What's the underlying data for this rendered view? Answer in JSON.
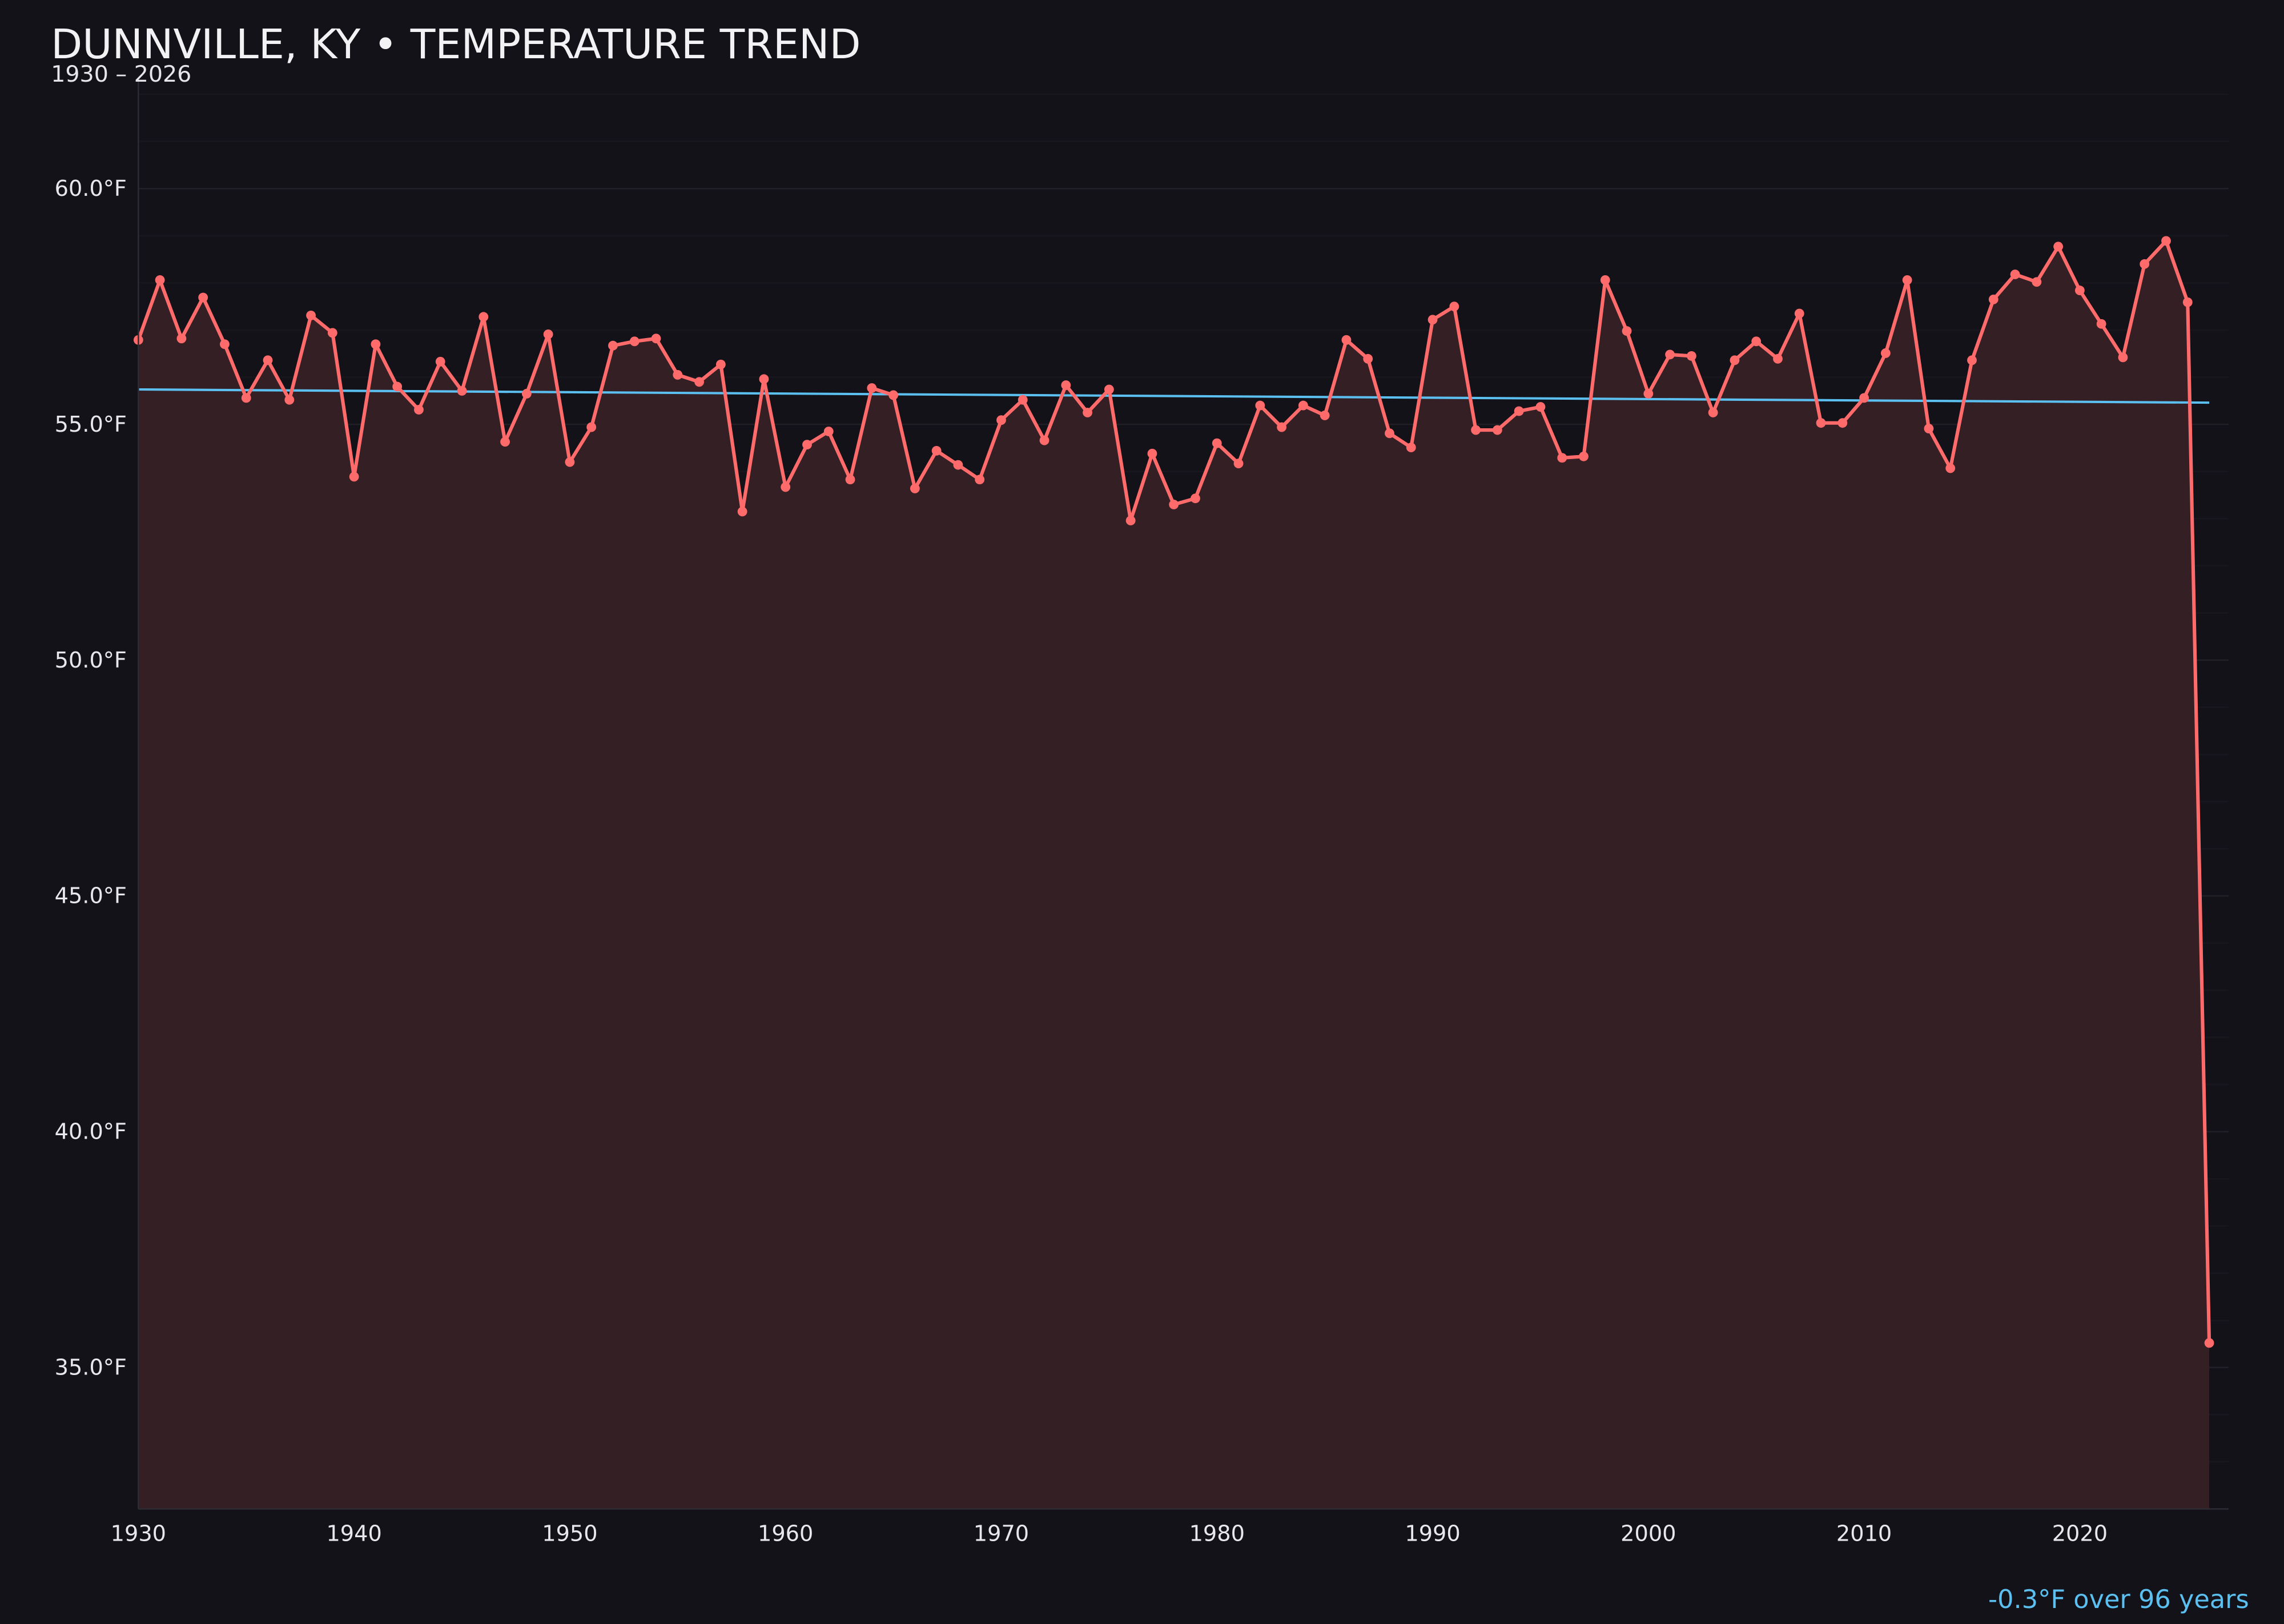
{
  "colors": {
    "background": "#131219",
    "series": "#ff6b6b",
    "fill": "#341f25",
    "trend": "#5bc0f0",
    "grid": "#1f1e25"
  },
  "chart_data": {
    "type": "line",
    "title": "DUNNVILLE, KY • TEMPERATURE TREND",
    "subtitle": "1930 – 2026",
    "xlabel": "",
    "ylabel": "",
    "xlim": [
      1930,
      2026.9
    ],
    "ylim": [
      32.0,
      62.3
    ],
    "grid": true,
    "x_ticks": [
      {
        "value": 1930,
        "label": "1930"
      },
      {
        "value": 1940,
        "label": "1940"
      },
      {
        "value": 1950,
        "label": "1950"
      },
      {
        "value": 1960,
        "label": "1960"
      },
      {
        "value": 1970,
        "label": "1970"
      },
      {
        "value": 1980,
        "label": "1980"
      },
      {
        "value": 1990,
        "label": "1990"
      },
      {
        "value": 2000,
        "label": "2000"
      },
      {
        "value": 2010,
        "label": "2010"
      },
      {
        "value": 2020,
        "label": "2020"
      }
    ],
    "y_ticks": [
      {
        "value": 35,
        "label": "35.0°F"
      },
      {
        "value": 40,
        "label": "40.0°F"
      },
      {
        "value": 45,
        "label": "45.0°F"
      },
      {
        "value": 50,
        "label": "50.0°F"
      },
      {
        "value": 55,
        "label": "55.0°F"
      },
      {
        "value": 60,
        "label": "60.0°F"
      }
    ],
    "series": [
      {
        "x": [
          1930,
          1931,
          1932,
          1933,
          1934,
          1935,
          1936,
          1937,
          1938,
          1939,
          1940,
          1941,
          1942,
          1943,
          1944,
          1945,
          1946,
          1947,
          1948,
          1949,
          1950,
          1951,
          1952,
          1953,
          1954,
          1955,
          1956,
          1957,
          1958,
          1959,
          1960,
          1961,
          1962,
          1963,
          1964,
          1965,
          1966,
          1967,
          1968,
          1969,
          1970,
          1971,
          1972,
          1973,
          1974,
          1975,
          1976,
          1977,
          1978,
          1979,
          1980,
          1981,
          1982,
          1983,
          1984,
          1985,
          1986,
          1987,
          1988,
          1989,
          1990,
          1991,
          1992,
          1993,
          1994,
          1995,
          1996,
          1997,
          1998,
          1999,
          2000,
          2001,
          2002,
          2003,
          2004,
          2005,
          2006,
          2007,
          2008,
          2009,
          2010,
          2011,
          2012,
          2013,
          2014,
          2015,
          2016,
          2017,
          2018,
          2019,
          2020,
          2021,
          2022,
          2023,
          2024,
          2025,
          2026
        ],
        "values": [
          56.79,
          58.06,
          56.82,
          57.69,
          56.7,
          55.56,
          56.36,
          55.52,
          57.31,
          56.94,
          53.89,
          56.7,
          55.8,
          55.31,
          56.33,
          55.71,
          57.28,
          54.63,
          55.65,
          56.91,
          54.2,
          54.94,
          56.67,
          56.76,
          56.82,
          56.05,
          55.9,
          56.27,
          53.15,
          55.96,
          53.67,
          54.57,
          54.85,
          53.83,
          55.77,
          55.62,
          53.64,
          54.44,
          54.14,
          53.83,
          55.09,
          55.52,
          54.66,
          55.83,
          55.25,
          55.74,
          52.96,
          54.38,
          53.3,
          53.43,
          54.6,
          54.17,
          55.4,
          54.94,
          55.4,
          55.19,
          56.79,
          56.39,
          54.81,
          54.51,
          57.22,
          57.5,
          54.88,
          54.88,
          55.28,
          55.37,
          54.29,
          54.32,
          58.06,
          56.98,
          55.65,
          56.48,
          56.45,
          55.25,
          56.36,
          56.76,
          56.39,
          57.35,
          55.03,
          55.03,
          55.56,
          56.51,
          58.06,
          54.91,
          54.07,
          56.36,
          57.65,
          58.18,
          58.02,
          58.77,
          57.84,
          57.13,
          56.42,
          58.4,
          58.89,
          57.59,
          35.52
        ]
      }
    ],
    "trend": {
      "x": [
        1930,
        2026
      ],
      "values": [
        55.74,
        55.46
      ]
    },
    "annotation": "-0.3°F over 96 years"
  }
}
